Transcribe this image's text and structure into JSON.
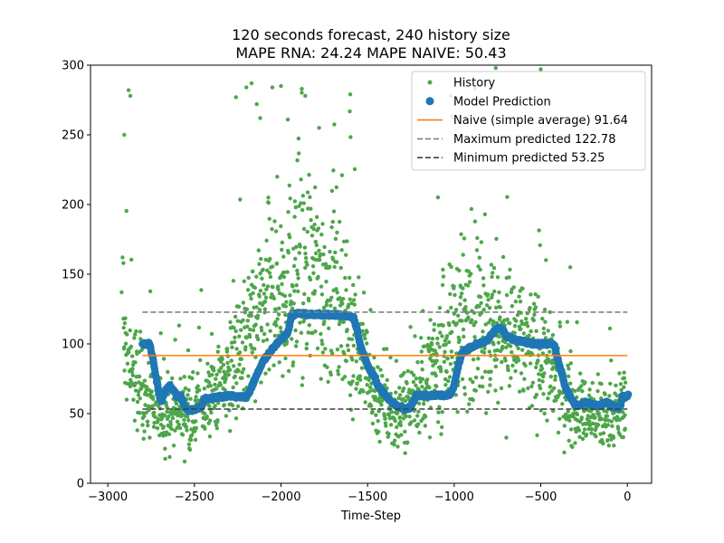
{
  "chart_data": {
    "type": "scatter",
    "title_line1": "120 seconds forecast, 240 history size",
    "title_line2": "MAPE RNA: 24.24 MAPE NAIVE: 50.43",
    "xlabel": "Time-Step",
    "ylabel": "",
    "xlim": [
      -3100,
      140
    ],
    "ylim": [
      0,
      300
    ],
    "xticks": [
      -3000,
      -2500,
      -2000,
      -1500,
      -1000,
      -500,
      0
    ],
    "xtick_labels": [
      "−3000",
      "−2500",
      "−2000",
      "−1500",
      "−1000",
      "−500",
      "0"
    ],
    "yticks": [
      0,
      50,
      100,
      150,
      200,
      250,
      300
    ],
    "ytick_labels": [
      "0",
      "50",
      "100",
      "150",
      "200",
      "250",
      "300"
    ],
    "grid": false,
    "legend_position": "top-right",
    "colors": {
      "history": "#4ea64a",
      "prediction": "#1f77b4",
      "naive": "#ff7f0e",
      "maximum": "#808080",
      "minimum": "#404040"
    },
    "series": [
      {
        "name": "History",
        "kind": "points",
        "x_range": [
          -2910,
          -10
        ],
        "trend": [
          [
            -2910,
            95
          ],
          [
            -2850,
            78
          ],
          [
            -2790,
            65
          ],
          [
            -2700,
            48
          ],
          [
            -2600,
            52
          ],
          [
            -2500,
            50
          ],
          [
            -2400,
            62
          ],
          [
            -2300,
            78
          ],
          [
            -2200,
            100
          ],
          [
            -2100,
            128
          ],
          [
            -2000,
            140
          ],
          [
            -1900,
            152
          ],
          [
            -1800,
            148
          ],
          [
            -1700,
            135
          ],
          [
            -1600,
            108
          ],
          [
            -1520,
            88
          ],
          [
            -1480,
            72
          ],
          [
            -1400,
            50
          ],
          [
            -1350,
            45
          ],
          [
            -1300,
            52
          ],
          [
            -1200,
            68
          ],
          [
            -1100,
            85
          ],
          [
            -1000,
            108
          ],
          [
            -900,
            120
          ],
          [
            -800,
            115
          ],
          [
            -700,
            105
          ],
          [
            -600,
            98
          ],
          [
            -500,
            90
          ],
          [
            -420,
            75
          ],
          [
            -350,
            60
          ],
          [
            -250,
            52
          ],
          [
            -150,
            45
          ],
          [
            -10,
            55
          ]
        ],
        "outliers": [
          [
            -2920,
            137
          ],
          [
            -2915,
            162
          ],
          [
            -2910,
            158
          ],
          [
            -2905,
            250
          ],
          [
            -2880,
            282
          ],
          [
            -2870,
            278
          ],
          [
            -2260,
            277
          ],
          [
            -2200,
            284
          ],
          [
            -2170,
            287
          ],
          [
            -2140,
            272
          ],
          [
            -2120,
            262
          ],
          [
            -2050,
            284
          ],
          [
            -2000,
            285
          ],
          [
            -1960,
            261
          ],
          [
            -1880,
            283
          ],
          [
            -1860,
            278
          ],
          [
            -1780,
            255
          ],
          [
            -1600,
            279
          ],
          [
            -1020,
            278
          ],
          [
            -880,
            283
          ],
          [
            -500,
            297
          ],
          [
            -760,
            298
          ],
          [
            -330,
            155
          ]
        ]
      },
      {
        "name": "Model Prediction",
        "kind": "points",
        "path": [
          [
            -2800,
            100
          ],
          [
            -2760,
            100
          ],
          [
            -2740,
            90
          ],
          [
            -2720,
            75
          ],
          [
            -2700,
            62
          ],
          [
            -2690,
            58
          ],
          [
            -2670,
            66
          ],
          [
            -2640,
            70
          ],
          [
            -2600,
            62
          ],
          [
            -2580,
            63
          ],
          [
            -2560,
            56
          ],
          [
            -2540,
            52
          ],
          [
            -2500,
            53
          ],
          [
            -2460,
            55
          ],
          [
            -2440,
            61
          ],
          [
            -2400,
            61
          ],
          [
            -2370,
            62
          ],
          [
            -2340,
            62
          ],
          [
            -2300,
            63
          ],
          [
            -2260,
            62
          ],
          [
            -2200,
            62
          ],
          [
            -2180,
            66
          ],
          [
            -2150,
            75
          ],
          [
            -2100,
            88
          ],
          [
            -2060,
            95
          ],
          [
            -2000,
            103
          ],
          [
            -1960,
            108
          ],
          [
            -1940,
            120
          ],
          [
            -1900,
            122
          ],
          [
            -1850,
            121
          ],
          [
            -1800,
            121
          ],
          [
            -1700,
            121
          ],
          [
            -1600,
            120
          ],
          [
            -1580,
            118
          ],
          [
            -1560,
            110
          ],
          [
            -1540,
            98
          ],
          [
            -1500,
            85
          ],
          [
            -1480,
            80
          ],
          [
            -1460,
            76
          ],
          [
            -1440,
            70
          ],
          [
            -1400,
            64
          ],
          [
            -1360,
            58
          ],
          [
            -1320,
            55
          ],
          [
            -1280,
            53
          ],
          [
            -1250,
            55
          ],
          [
            -1220,
            63
          ],
          [
            -1180,
            63
          ],
          [
            -1140,
            63
          ],
          [
            -1100,
            63
          ],
          [
            -1060,
            63
          ],
          [
            -1020,
            64
          ],
          [
            -1000,
            70
          ],
          [
            -980,
            82
          ],
          [
            -960,
            92
          ],
          [
            -940,
            95
          ],
          [
            -900,
            98
          ],
          [
            -860,
            100
          ],
          [
            -820,
            102
          ],
          [
            -780,
            107
          ],
          [
            -760,
            110
          ],
          [
            -740,
            112
          ],
          [
            -720,
            110
          ],
          [
            -700,
            106
          ],
          [
            -660,
            103
          ],
          [
            -620,
            102
          ],
          [
            -580,
            101
          ],
          [
            -540,
            100
          ],
          [
            -500,
            100
          ],
          [
            -460,
            100
          ],
          [
            -430,
            100
          ],
          [
            -420,
            98
          ],
          [
            -400,
            88
          ],
          [
            -380,
            80
          ],
          [
            -360,
            70
          ],
          [
            -340,
            64
          ],
          [
            -320,
            60
          ],
          [
            -300,
            56
          ],
          [
            -280,
            56
          ],
          [
            -260,
            57
          ],
          [
            -240,
            58
          ],
          [
            -220,
            57
          ],
          [
            -200,
            56
          ],
          [
            -180,
            56
          ],
          [
            -160,
            56
          ],
          [
            -140,
            57
          ],
          [
            -120,
            58
          ],
          [
            -100,
            57
          ],
          [
            -80,
            55
          ],
          [
            -60,
            54
          ],
          [
            -40,
            55
          ],
          [
            -30,
            62
          ],
          [
            -10,
            62
          ],
          [
            5,
            63
          ]
        ]
      },
      {
        "name": "Naive (simple average) 91.64",
        "kind": "hline",
        "y": 91.64,
        "x": [
          -2800,
          0
        ],
        "style": "solid"
      },
      {
        "name": "Maximum predicted 122.78",
        "kind": "hline",
        "y": 122.78,
        "x": [
          -2800,
          0
        ],
        "style": "dashed"
      },
      {
        "name": "Minimum predicted 53.25",
        "kind": "hline",
        "y": 53.25,
        "x": [
          -2800,
          0
        ],
        "style": "dashed"
      }
    ]
  }
}
